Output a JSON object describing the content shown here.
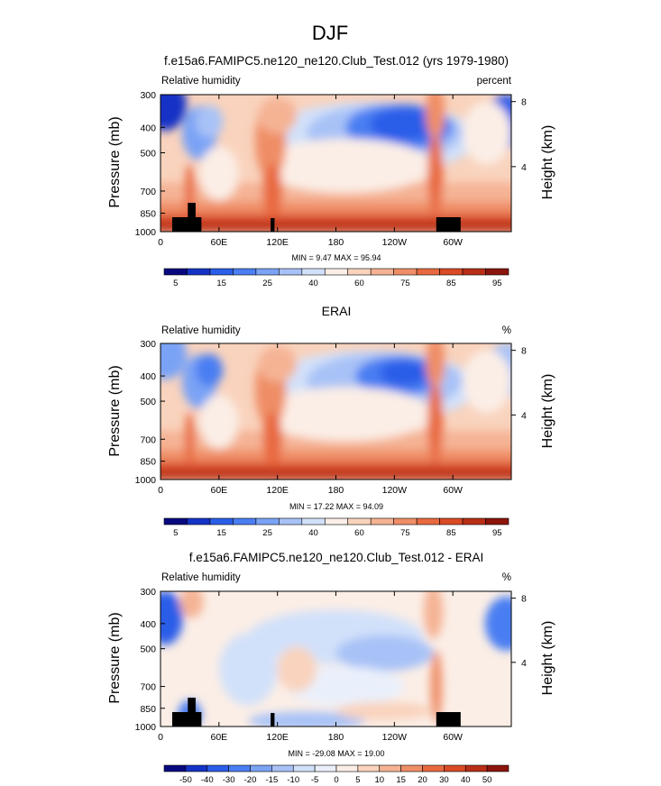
{
  "figure": {
    "title": "DJF",
    "units_note": "percent"
  },
  "colors": {
    "hum_palette": [
      "#08087f",
      "#1433c6",
      "#2a5de8",
      "#4a7ef2",
      "#7aa3f5",
      "#a8c2f7",
      "#d2e1fa",
      "#fbeee6",
      "#f9d3bd",
      "#f5b394",
      "#ef8e66",
      "#e8693f",
      "#d94a25",
      "#b82e16",
      "#8b150c"
    ],
    "diff_palette": [
      "#08087f",
      "#1433c6",
      "#2a5de8",
      "#4a7ef2",
      "#7aa3f5",
      "#a8c2f7",
      "#d2e1fa",
      "#eaf0fb",
      "#fbeee6",
      "#f9d3bd",
      "#f5b394",
      "#ef8e66",
      "#e8693f",
      "#d94a25",
      "#b82e16",
      "#8b150c"
    ]
  },
  "chart_data": [
    {
      "type": "heatmap",
      "title": "f.e15a6.FAMIPC5.ne120_ne120.Club_Test.012 (yrs 1979-1980)",
      "left_label": "Relative humidity",
      "right_label": "percent",
      "xlabel": "",
      "ylabel": "Pressure (mb)",
      "y2label": "Height (km)",
      "x_ticks": [
        "0",
        "60E",
        "120E",
        "180",
        "120W",
        "60W"
      ],
      "x_tick_lon": [
        0,
        60,
        120,
        180,
        240,
        300
      ],
      "x_range": [
        0,
        360
      ],
      "y_ticks": [
        300,
        400,
        500,
        700,
        850,
        1000
      ],
      "y_range": [
        300,
        1000
      ],
      "height_ticks_km": [
        8,
        4
      ],
      "min_label": "MIN =  9.47  MAX =  95.94",
      "min": 9.47,
      "max": 95.94,
      "colorbar_labels": [
        "5",
        "15",
        "25",
        "40",
        "60",
        "75",
        "85",
        "95"
      ],
      "levels": [
        5,
        10,
        15,
        20,
        25,
        30,
        40,
        50,
        60,
        70,
        75,
        80,
        85,
        90,
        95
      ]
    },
    {
      "type": "heatmap",
      "title": "ERAI",
      "left_label": "Relative humidity",
      "right_label": "%",
      "xlabel": "",
      "ylabel": "Pressure (mb)",
      "y2label": "Height (km)",
      "x_ticks": [
        "0",
        "60E",
        "120E",
        "180",
        "120W",
        "60W"
      ],
      "x_tick_lon": [
        0,
        60,
        120,
        180,
        240,
        300
      ],
      "x_range": [
        0,
        360
      ],
      "y_ticks": [
        300,
        400,
        500,
        700,
        850,
        1000
      ],
      "y_range": [
        300,
        1000
      ],
      "height_ticks_km": [
        8,
        4
      ],
      "min_label": "MIN =  17.22  MAX =  94.09",
      "min": 17.22,
      "max": 94.09,
      "colorbar_labels": [
        "5",
        "15",
        "25",
        "40",
        "60",
        "75",
        "85",
        "95"
      ],
      "levels": [
        5,
        10,
        15,
        20,
        25,
        30,
        40,
        50,
        60,
        70,
        75,
        80,
        85,
        90,
        95
      ]
    },
    {
      "type": "heatmap",
      "title": "f.e15a6.FAMIPC5.ne120_ne120.Club_Test.012 - ERAI",
      "left_label": "Relative humidity",
      "right_label": "%",
      "xlabel": "",
      "ylabel": "Pressure (mb)",
      "y2label": "Height (km)",
      "x_ticks": [
        "0",
        "60E",
        "120E",
        "180",
        "120W",
        "60W"
      ],
      "x_tick_lon": [
        0,
        60,
        120,
        180,
        240,
        300
      ],
      "x_range": [
        0,
        360
      ],
      "y_ticks": [
        300,
        400,
        500,
        700,
        850,
        1000
      ],
      "y_range": [
        300,
        1000
      ],
      "height_ticks_km": [
        8,
        4
      ],
      "min_label": "MIN = -29.08  MAX =  19.00",
      "min": -29.08,
      "max": 19.0,
      "colorbar_labels": [
        "-50",
        "-40",
        "-30",
        "-20",
        "-15",
        "-10",
        "-5",
        "0",
        "5",
        "10",
        "15",
        "20",
        "30",
        "40",
        "50"
      ],
      "levels": [
        -50,
        -40,
        -30,
        -20,
        -15,
        -10,
        -5,
        0,
        5,
        10,
        15,
        20,
        30,
        40,
        50
      ]
    }
  ]
}
